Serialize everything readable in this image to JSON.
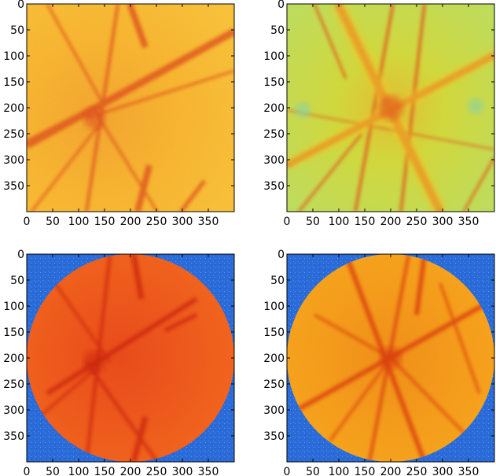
{
  "figure": {
    "panels": [
      {
        "id": "top-left",
        "style": "fft-raw",
        "palette": "warm",
        "x_ticks": [
          "0",
          "50",
          "100",
          "150",
          "200",
          "250",
          "300",
          "350"
        ],
        "y_ticks": [
          "0",
          "50",
          "100",
          "150",
          "200",
          "250",
          "300",
          "350"
        ]
      },
      {
        "id": "top-right",
        "style": "fft-raw",
        "palette": "green",
        "x_ticks": [
          "0",
          "50",
          "100",
          "150",
          "200",
          "250",
          "300",
          "350"
        ],
        "y_ticks": [
          "0",
          "50",
          "100",
          "150",
          "200",
          "250",
          "300",
          "350"
        ]
      },
      {
        "id": "bottom-left",
        "style": "circle-mask",
        "palette": "red",
        "x_ticks": [
          "0",
          "50",
          "100",
          "150",
          "200",
          "250",
          "300",
          "350"
        ],
        "y_ticks": [
          "0",
          "50",
          "100",
          "150",
          "200",
          "250",
          "300",
          "350"
        ]
      },
      {
        "id": "bottom-right",
        "style": "circle-mask",
        "palette": "orange",
        "x_ticks": [
          "0",
          "50",
          "100",
          "150",
          "200",
          "250",
          "300",
          "350"
        ],
        "y_ticks": [
          "0",
          "50",
          "100",
          "150",
          "200",
          "250",
          "300",
          "350"
        ]
      }
    ],
    "colors": {
      "warm_bg": "#f7a21c",
      "warm_mid": "#f08a1a",
      "warm_dark": "#d8360f",
      "warm_light": "#fbd33a",
      "green_bg": "#c9e04a",
      "green_mid": "#f0c52a",
      "green_dark": "#e0541a",
      "green_light": "#8fd39a",
      "mask_blue": "#2a6bd8",
      "mask_blue_light": "#4a8ae8",
      "red_bg": "#f25a1e",
      "red_dark": "#c8220f",
      "orange_bg": "#f9a11f",
      "orange_dark": "#d8380f"
    }
  }
}
